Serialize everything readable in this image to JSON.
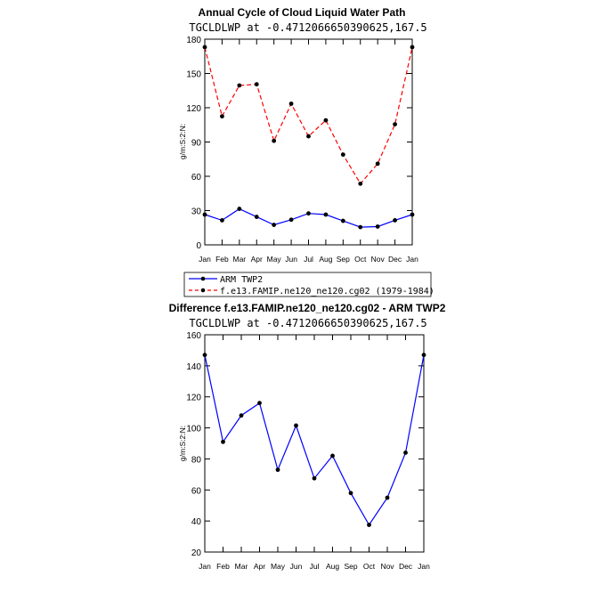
{
  "chart_data": [
    {
      "type": "line",
      "title": "Annual Cycle of Cloud Liquid Water Path",
      "subtitle": "TGCLDLWP  at  -0.4712066650390625,167.5",
      "ylabel": "g/m:S:2:N:",
      "xlabel": "",
      "ylim": [
        0,
        180
      ],
      "yticks": [
        0,
        30,
        60,
        90,
        120,
        150,
        180
      ],
      "categories": [
        "Jan",
        "Feb",
        "Mar",
        "Apr",
        "May",
        "Jun",
        "Jul",
        "Aug",
        "Sep",
        "Oct",
        "Nov",
        "Dec",
        "Jan"
      ],
      "legend_position": "bottom-left",
      "series": [
        {
          "name": "ARM TWP2",
          "color": "#0000ff",
          "dash": "solid",
          "values": [
            26.5,
            21.5,
            31.5,
            24.5,
            17.5,
            22,
            27.5,
            26.5,
            21,
            15.5,
            16,
            21.5,
            26.5
          ]
        },
        {
          "name": "f.e13.FAMIP.ne120_ne120.cg02 (1979-1984)",
          "color": "#ff0000",
          "dash": "dashed",
          "values": [
            173,
            112.5,
            139.5,
            140.5,
            91,
            123.5,
            95,
            109,
            79,
            53.5,
            71,
            105.5,
            173
          ]
        }
      ]
    },
    {
      "type": "line",
      "title": "Difference f.e13.FAMIP.ne120_ne120.cg02 - ARM TWP2",
      "subtitle": "TGCLDLWP  at  -0.4712066650390625,167.5",
      "ylabel": "g/m:S:2:N:",
      "xlabel": "",
      "ylim": [
        20,
        160
      ],
      "yticks": [
        20,
        40,
        60,
        80,
        100,
        120,
        140,
        160
      ],
      "categories": [
        "Jan",
        "Feb",
        "Mar",
        "Apr",
        "May",
        "Jun",
        "Jul",
        "Aug",
        "Sep",
        "Oct",
        "Nov",
        "Dec",
        "Jan"
      ],
      "series": [
        {
          "name": "Difference",
          "color": "#0000ff",
          "dash": "solid",
          "values": [
            147,
            91,
            108,
            116,
            73,
            101.5,
            67.5,
            82,
            58,
            37.5,
            55,
            84,
            147
          ]
        }
      ]
    }
  ],
  "colors": {
    "line_blue": "#0000ff",
    "line_red": "#ff0000",
    "marker": "#000000"
  }
}
